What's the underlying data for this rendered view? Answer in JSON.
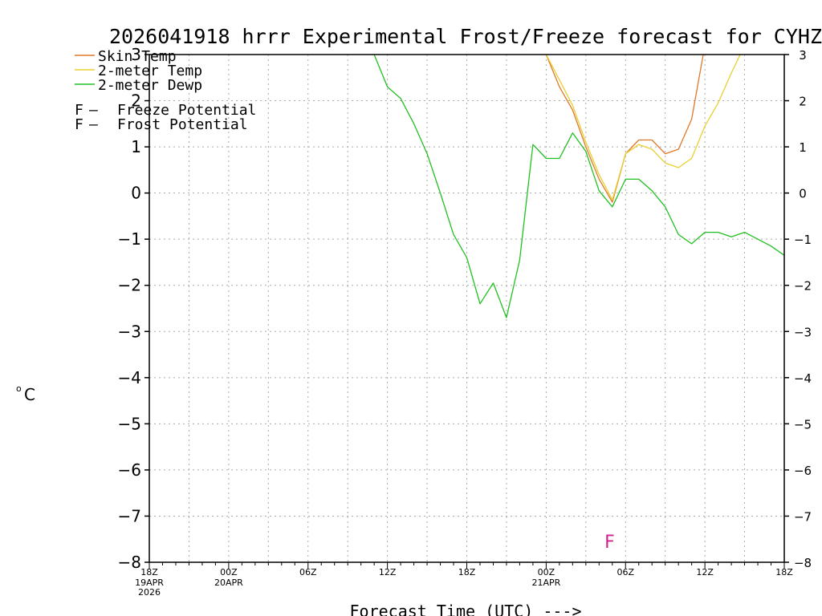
{
  "chart_data": {
    "type": "line",
    "title": "2026041918 hrrr Experimental Frost/Freeze forecast for CYHZ",
    "xlabel": "Forecast Time (UTC) --->",
    "ylabel_base": "C",
    "ylabel_degree": "o",
    "ylim": [
      -8,
      3
    ],
    "xlim": [
      0,
      48
    ],
    "yticks": [
      3,
      2,
      1,
      0,
      -1,
      -2,
      -3,
      -4,
      -5,
      -6,
      -7,
      -8
    ],
    "xticks": [
      {
        "x": 0,
        "label": "18Z",
        "sub": [
          "19APR",
          "2026"
        ]
      },
      {
        "x": 6,
        "label": "00Z",
        "sub": [
          "20APR"
        ]
      },
      {
        "x": 12,
        "label": "06Z",
        "sub": []
      },
      {
        "x": 18,
        "label": "12Z",
        "sub": []
      },
      {
        "x": 24,
        "label": "18Z",
        "sub": []
      },
      {
        "x": 30,
        "label": "00Z",
        "sub": [
          "21APR"
        ]
      },
      {
        "x": 36,
        "label": "06Z",
        "sub": []
      },
      {
        "x": 42,
        "label": "12Z",
        "sub": []
      },
      {
        "x": 48,
        "label": "18Z",
        "sub": []
      }
    ],
    "grid": true,
    "series": [
      {
        "name": "Skin Temp",
        "color": "#e07828",
        "points": [
          [
            30,
            3.0
          ],
          [
            31,
            2.3
          ],
          [
            32,
            1.8
          ],
          [
            33,
            1.0
          ],
          [
            34,
            0.3
          ],
          [
            35,
            -0.2
          ],
          [
            36,
            0.85
          ],
          [
            37,
            1.15
          ],
          [
            38,
            1.15
          ],
          [
            39,
            0.85
          ],
          [
            40,
            0.95
          ],
          [
            41,
            1.6
          ],
          [
            42,
            3.2
          ]
        ]
      },
      {
        "name": "2-meter Temp",
        "color": "#e8d030",
        "points": [
          [
            30,
            3.0
          ],
          [
            31,
            2.45
          ],
          [
            32,
            1.9
          ],
          [
            33,
            1.1
          ],
          [
            34,
            0.4
          ],
          [
            35,
            -0.15
          ],
          [
            36,
            0.85
          ],
          [
            37,
            1.05
          ],
          [
            38,
            0.95
          ],
          [
            39,
            0.65
          ],
          [
            40,
            0.55
          ],
          [
            41,
            0.75
          ],
          [
            42,
            1.45
          ],
          [
            43,
            1.95
          ],
          [
            44,
            2.6
          ],
          [
            45,
            3.2
          ]
        ]
      },
      {
        "name": "2-meter Dewp",
        "color": "#20c020",
        "points": [
          [
            17,
            3.0
          ],
          [
            18,
            2.3
          ],
          [
            19,
            2.05
          ],
          [
            20,
            1.5
          ],
          [
            21,
            0.85
          ],
          [
            22,
            0.0
          ],
          [
            23,
            -0.9
          ],
          [
            24,
            -1.4
          ],
          [
            25,
            -2.4
          ],
          [
            26,
            -1.95
          ],
          [
            27,
            -2.7
          ],
          [
            28,
            -1.45
          ],
          [
            29,
            1.05
          ],
          [
            30,
            0.75
          ],
          [
            31,
            0.75
          ],
          [
            32,
            1.3
          ],
          [
            33,
            0.9
          ],
          [
            34,
            0.05
          ],
          [
            35,
            -0.3
          ],
          [
            36,
            0.3
          ],
          [
            37,
            0.3
          ],
          [
            38,
            0.05
          ],
          [
            39,
            -0.3
          ],
          [
            40,
            -0.9
          ],
          [
            41,
            -1.1
          ],
          [
            42,
            -0.85
          ],
          [
            43,
            -0.85
          ],
          [
            44,
            -0.95
          ],
          [
            45,
            -0.85
          ],
          [
            46,
            -1.0
          ],
          [
            47,
            -1.15
          ],
          [
            48,
            -1.35
          ]
        ]
      }
    ],
    "potential_legend": [
      {
        "marker": "F",
        "label": "Freeze Potential",
        "color": "#d02090"
      },
      {
        "marker": "F",
        "label": "Frost Potential",
        "color": "#3050e0"
      }
    ],
    "markers": [
      {
        "x": 34.8,
        "y": -7.55,
        "text": "F",
        "color": "#d02090"
      }
    ]
  }
}
